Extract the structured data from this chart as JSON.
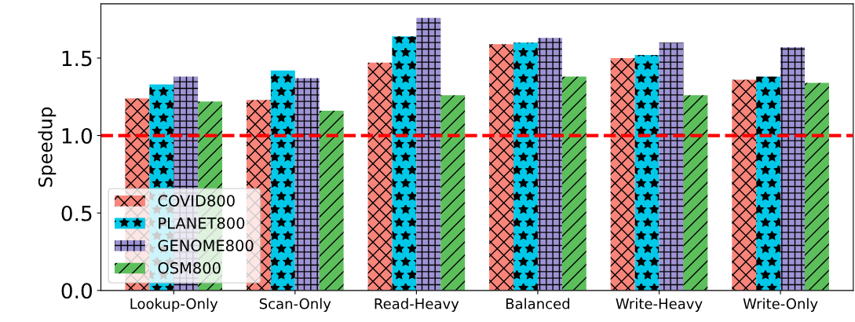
{
  "chart_data": {
    "type": "bar",
    "ylabel": "Speedup",
    "categories": [
      "Lookup-Only",
      "Scan-Only",
      "Read-Heavy",
      "Balanced",
      "Write-Heavy",
      "Write-Only"
    ],
    "series": [
      {
        "name": "COVID800",
        "color": "#f8847a",
        "values": [
          1.24,
          1.23,
          1.47,
          1.59,
          1.5,
          1.36
        ]
      },
      {
        "name": "PLANET800",
        "color": "#00c8e8",
        "values": [
          1.33,
          1.42,
          1.64,
          1.6,
          1.52,
          1.38
        ]
      },
      {
        "name": "GENOME800",
        "color": "#9e93d3",
        "values": [
          1.38,
          1.37,
          1.76,
          1.63,
          1.6,
          1.57
        ]
      },
      {
        "name": "OSM800",
        "color": "#5cbf5c",
        "values": [
          1.22,
          1.16,
          1.26,
          1.38,
          1.26,
          1.34
        ]
      }
    ],
    "ylim": [
      0,
      1.85
    ],
    "yticks": [
      {
        "value": 0,
        "label": "0.0"
      },
      0.5,
      {
        "value": 1,
        "label": "1.0"
      },
      1.5
    ],
    "ref_lines": [
      {
        "axis": "y",
        "value": 1.0,
        "color": "#ff0000",
        "line_style": "dashed"
      }
    ],
    "legend": "bottom left",
    "grid": false
  }
}
